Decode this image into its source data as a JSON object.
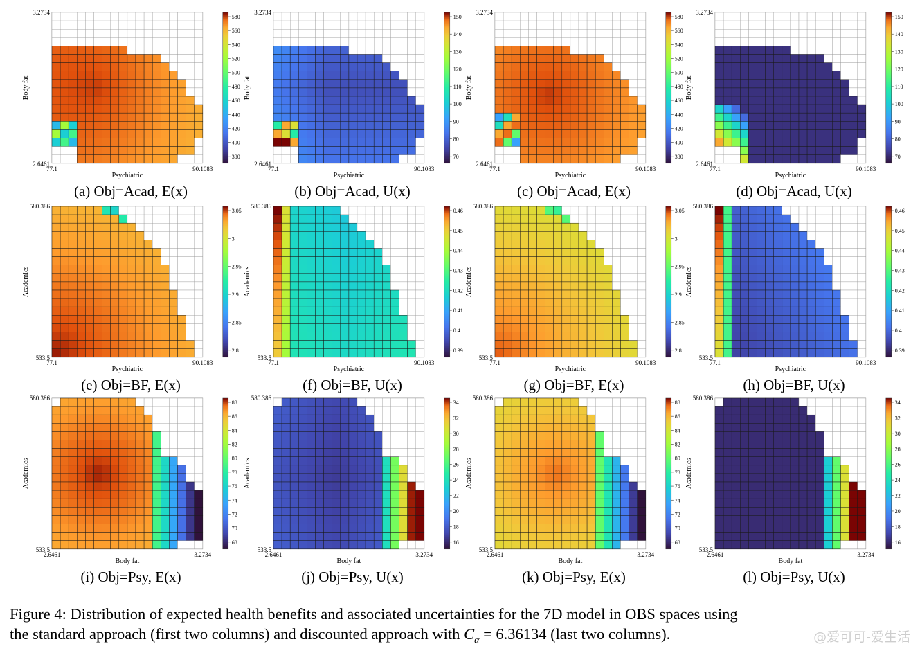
{
  "panels": [
    {
      "id": "a",
      "title": "(a) Obj=Acad, E(x)",
      "xlabel": "Psychiatric",
      "ylabel": "Body fat",
      "xmin": "77.1",
      "xmax": "90.1083",
      "ymin": "2.6461",
      "ymax": "3.2734",
      "field": "acadE",
      "cmap": "turbo",
      "ticks": [
        "580",
        "560",
        "540",
        "520",
        "500",
        "480",
        "460",
        "440",
        "420",
        "400",
        "380"
      ]
    },
    {
      "id": "b",
      "title": "(b) Obj=Acad, U(x)",
      "xlabel": "Psychiatric",
      "ylabel": "Body fat",
      "xmin": "77.1",
      "xmax": "90.1083",
      "ymin": "2.6461",
      "ymax": "3.2734",
      "field": "acadU",
      "cmap": "turbo",
      "ticks": [
        "150",
        "140",
        "130",
        "120",
        "110",
        "100",
        "90",
        "80",
        "70"
      ]
    },
    {
      "id": "c",
      "title": "(c) Obj=Acad, E(x)",
      "xlabel": "Psychiatric",
      "ylabel": "Body fat",
      "xmin": "77.1",
      "xmax": "90.1083",
      "ymin": "2.6461",
      "ymax": "3.2734",
      "field": "acadE2",
      "cmap": "turbo",
      "ticks": [
        "580",
        "560",
        "540",
        "520",
        "500",
        "480",
        "460",
        "440",
        "420",
        "400",
        "380"
      ]
    },
    {
      "id": "d",
      "title": "(d) Obj=Acad, U(x)",
      "xlabel": "Psychiatric",
      "ylabel": "Body fat",
      "xmin": "77.1",
      "xmax": "90.1083",
      "ymin": "2.6461",
      "ymax": "3.2734",
      "field": "acadU2",
      "cmap": "turbo",
      "ticks": [
        "150",
        "140",
        "130",
        "120",
        "110",
        "100",
        "90",
        "80",
        "70"
      ]
    },
    {
      "id": "e",
      "title": "(e) Obj=BF, E(x)",
      "xlabel": "Psychiatric",
      "ylabel": "Academics",
      "xmin": "77.1",
      "xmax": "90.1083",
      "ymin": "533.5",
      "ymax": "580.386",
      "field": "bfE",
      "cmap": "turbo",
      "ticks": [
        "3.05",
        "3",
        "2.95",
        "2.9",
        "2.85",
        "2.8"
      ]
    },
    {
      "id": "f",
      "title": "(f) Obj=BF, U(x)",
      "xlabel": "Psychiatric",
      "ylabel": "Academics",
      "xmin": "77.1",
      "xmax": "90.1083",
      "ymin": "533.5",
      "ymax": "580.386",
      "field": "bfU",
      "cmap": "turbo",
      "ticks": [
        "0.46",
        "0.45",
        "0.44",
        "0.43",
        "0.42",
        "0.41",
        "0.4",
        "0.39"
      ]
    },
    {
      "id": "g",
      "title": "(g) Obj=BF, E(x)",
      "xlabel": "Psychiatric",
      "ylabel": "Academics",
      "xmin": "77.1",
      "xmax": "90.1083",
      "ymin": "533.5",
      "ymax": "580.386",
      "field": "bfE2",
      "cmap": "turbo",
      "ticks": [
        "3.05",
        "3",
        "2.95",
        "2.9",
        "2.85",
        "2.8"
      ]
    },
    {
      "id": "h",
      "title": "(h) Obj=BF, U(x)",
      "xlabel": "Psychiatric",
      "ylabel": "Academics",
      "xmin": "77.1",
      "xmax": "90.1083",
      "ymin": "533.5",
      "ymax": "580.386",
      "field": "bfU2",
      "cmap": "turbo",
      "ticks": [
        "0.46",
        "0.45",
        "0.44",
        "0.43",
        "0.42",
        "0.41",
        "0.4",
        "0.39"
      ]
    },
    {
      "id": "i",
      "title": "(i) Obj=Psy, E(x)",
      "xlabel": "Body fat",
      "ylabel": "Academics",
      "xmin": "2.6461",
      "xmax": "3.2734",
      "ymin": "533.5",
      "ymax": "580.386",
      "field": "psyE",
      "cmap": "turbo",
      "ticks": [
        "88",
        "86",
        "84",
        "82",
        "80",
        "78",
        "76",
        "74",
        "72",
        "70",
        "68"
      ]
    },
    {
      "id": "j",
      "title": "(j) Obj=Psy, U(x)",
      "xlabel": "Body fat",
      "ylabel": "Academics",
      "xmin": "2.6461",
      "xmax": "3.2734",
      "ymin": "533.5",
      "ymax": "580.386",
      "field": "psyU",
      "cmap": "turbo",
      "ticks": [
        "34",
        "32",
        "30",
        "28",
        "26",
        "24",
        "22",
        "20",
        "18",
        "16"
      ]
    },
    {
      "id": "k",
      "title": "(k) Obj=Psy, E(x)",
      "xlabel": "Body fat",
      "ylabel": "Academics",
      "xmin": "2.6461",
      "xmax": "3.2734",
      "ymin": "533.5",
      "ymax": "580.386",
      "field": "psyE2",
      "cmap": "turbo",
      "ticks": [
        "88",
        "86",
        "84",
        "82",
        "80",
        "78",
        "76",
        "74",
        "72",
        "70",
        "68"
      ]
    },
    {
      "id": "l",
      "title": "(l) Obj=Psy, U(x)",
      "xlabel": "Body fat",
      "ylabel": "Academics",
      "xmin": "2.6461",
      "xmax": "3.2734",
      "ymin": "533.5",
      "ymax": "580.386",
      "field": "psyU2",
      "cmap": "turbo",
      "ticks": [
        "34",
        "32",
        "30",
        "28",
        "26",
        "24",
        "22",
        "20",
        "18",
        "16"
      ]
    }
  ],
  "caption": {
    "line1": "Figure 4: Distribution of expected health benefits and associated uncertainties for the 7D model in OBS spaces using",
    "line2a": "the standard approach (first two columns) and discounted approach with ",
    "math_sym": "C",
    "math_sub": "α",
    "math_eq": " = 6.36134",
    "line2b": " (last two columns)."
  },
  "watermark": "@爱可可-爱生活",
  "chart_data": {
    "type": "heatmap",
    "grid": "18 x 18 cells, unfilled cells lie outside the feasible region",
    "colormap": "turbo (dark blue low → red high)"
  }
}
